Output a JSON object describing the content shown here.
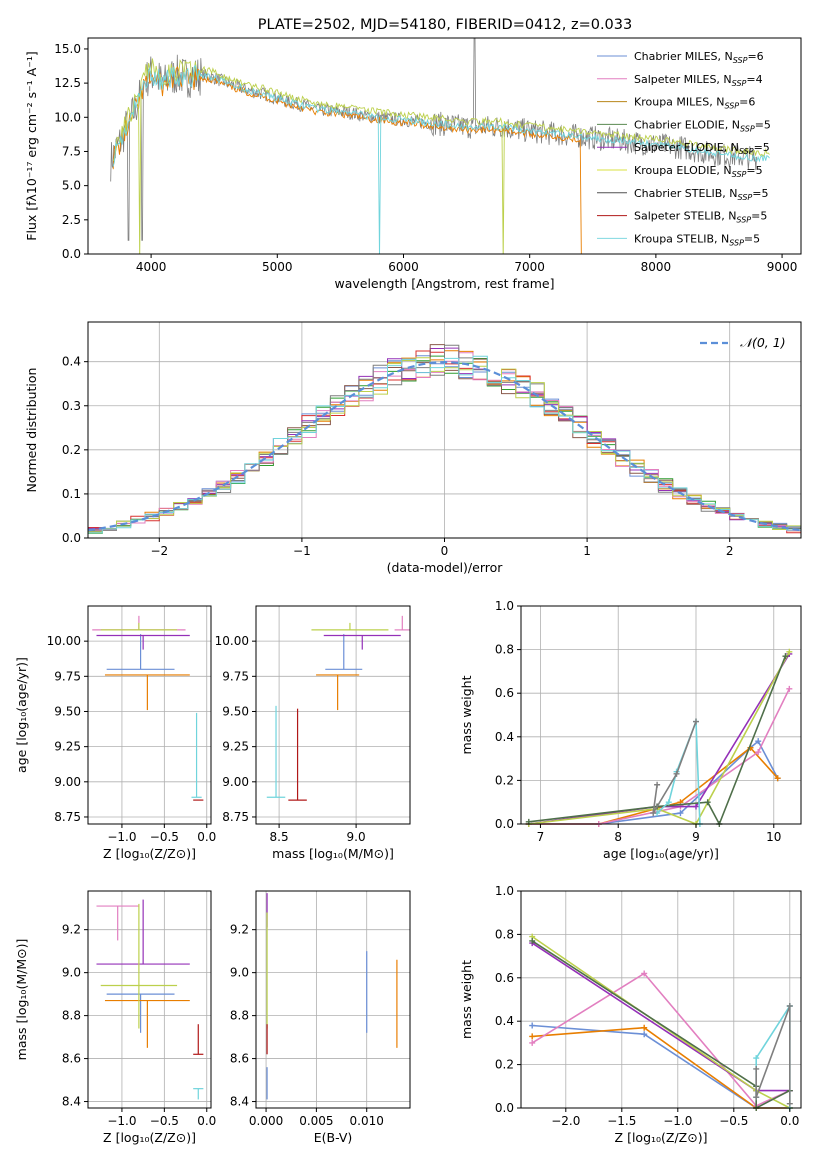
{
  "colors": [
    "#6b8fd6",
    "#e87e00",
    "#2e9d30",
    "#d8302e",
    "#9457c0",
    "#8b5a4c",
    "#e27fc0",
    "#7f7f7f",
    "#bcd04c",
    "#70d4dc"
  ],
  "chart_data": [
    {
      "type": "line",
      "title": "PLATE=2502, MJD=54180, FIBERID=0412, z=0.033",
      "xlabel": "wavelength [Angstrom, rest frame]",
      "ylabel": "Flux [fλ10⁻¹⁷ erg cm⁻² s⁻¹ A⁻¹]",
      "xlim": [
        3500,
        9150
      ],
      "ylim": [
        0,
        15.8
      ],
      "xticks": [
        4000,
        5000,
        6000,
        7000,
        8000,
        9000
      ],
      "yticks": [
        0.0,
        2.5,
        5.0,
        7.5,
        10.0,
        12.5,
        15.0
      ],
      "legend_position": "top-right",
      "legend": [
        {
          "label": "Chabrier MILES, N_SSP=6",
          "text": "Chabrier MILES, N",
          "sub": "SSP",
          "end": "=6",
          "color": "#6b8fd6"
        },
        {
          "label": "Salpeter MILES, N_SSP=4",
          "text": "Salpeter MILES, N",
          "sub": "SSP",
          "end": "=4",
          "color": "#e27fc0"
        },
        {
          "label": "Kroupa MILES, N_SSP=6",
          "text": "Kroupa MILES, N",
          "sub": "SSP",
          "end": "=6",
          "color": "#b8861a"
        },
        {
          "label": "Chabrier ELODIE, N_SSP=5",
          "text": "Chabrier ELODIE, N",
          "sub": "SSP",
          "end": "=5",
          "color": "#5a8a50"
        },
        {
          "label": "Salpeter ELODIE, N_SSP=5",
          "text": "Salpeter ELODIE, N",
          "sub": "SSP",
          "end": "=5",
          "color": "#9430b8"
        },
        {
          "label": "Kroupa ELODIE, N_SSP=5",
          "text": "Kroupa ELODIE, N",
          "sub": "SSP",
          "end": "=5",
          "color": "#d8e040"
        },
        {
          "label": "Chabrier STELIB, N_SSP=5",
          "text": "Chabrier STELIB, N",
          "sub": "SSP",
          "end": "=5",
          "color": "#505050"
        },
        {
          "label": "Salpeter STELIB, N_SSP=5",
          "text": "Salpeter STELIB, N",
          "sub": "SSP",
          "end": "=5",
          "color": "#b01818"
        },
        {
          "label": "Kroupa STELIB, N_SSP=5",
          "text": "Kroupa STELIB, N",
          "sub": "SSP",
          "end": "=5",
          "color": "#80d8e0"
        }
      ],
      "data_series": {
        "name": "data",
        "x": [
          3680,
          3720,
          3760,
          3800,
          3850,
          3900,
          3950,
          4000,
          4050,
          4100,
          4150,
          4200,
          4300,
          4400,
          4500,
          4600,
          4700,
          4800,
          4900,
          5000,
          5100,
          5200,
          5300,
          5400,
          5500,
          5600,
          5700,
          5800,
          5900,
          6000,
          6100,
          6200,
          6300,
          6400,
          6500,
          6600,
          6700,
          6800,
          6900,
          7000,
          7100,
          7200,
          7300,
          7400,
          7500,
          7600,
          7700,
          7800,
          7900,
          8000,
          8100,
          8200,
          8300,
          8400,
          8500,
          8600,
          8700,
          8800
        ],
        "y": [
          6.8,
          7.6,
          8.3,
          9.2,
          10.1,
          11.2,
          12.6,
          13.2,
          12.9,
          12.4,
          12.9,
          13.1,
          12.9,
          13.1,
          12.9,
          12.5,
          12.2,
          11.9,
          11.7,
          11.4,
          11.1,
          10.9,
          10.6,
          10.5,
          10.4,
          10.3,
          10.1,
          10.0,
          9.9,
          9.8,
          9.7,
          9.6,
          9.5,
          9.4,
          9.3,
          9.3,
          9.3,
          9.3,
          9.1,
          9.0,
          8.9,
          8.8,
          8.7,
          8.6,
          8.5,
          8.4,
          8.3,
          8.2,
          8.1,
          8.0,
          7.9,
          7.8,
          7.6,
          7.4,
          7.3,
          7.2,
          7.1,
          7.0
        ]
      }
    },
    {
      "type": "step",
      "xlabel": "(data-model)/error",
      "ylabel": "Normed distribution",
      "xlim": [
        -2.5,
        2.5
      ],
      "ylim": [
        0,
        0.49
      ],
      "xticks": [
        -2,
        -1,
        0,
        1,
        2
      ],
      "yticks": [
        0.0,
        0.1,
        0.2,
        0.3,
        0.4
      ],
      "legend_position": "top-right",
      "legend": [
        {
          "label": "𝒩(0, 1)",
          "color": "#5b8fd8"
        }
      ],
      "gaussian": {
        "mean": 0,
        "sigma": 1
      },
      "bin_width": 0.1
    },
    {
      "type": "errorbar",
      "xlabel": "Z [log₁₀(Z/Z⊙)]",
      "ylabel": "age  [log₁₀(age/yr)]",
      "xlim": [
        -1.4,
        0.05
      ],
      "ylim": [
        8.7,
        10.25
      ],
      "xticks": [
        -1.0,
        -0.5,
        0.0
      ],
      "yticks": [
        8.75,
        9.0,
        9.25,
        9.5,
        9.75,
        10.0
      ],
      "points": [
        {
          "x": -0.78,
          "y": 9.8,
          "xerr": 0.4,
          "yerr": [
            0.0,
            0.25
          ],
          "color": "#6b8fd6"
        },
        {
          "x": -0.7,
          "y": 9.76,
          "xerr": 0.5,
          "yerr": [
            0.25,
            0.0
          ],
          "color": "#e87e00"
        },
        {
          "x": -0.8,
          "y": 10.08,
          "xerr": 0.55,
          "yerr": [
            0.0,
            0.1
          ],
          "color": "#e27fc0"
        },
        {
          "x": -0.75,
          "y": 10.04,
          "xerr": 0.55,
          "yerr": [
            0.1,
            0.0
          ],
          "color": "#9430b8"
        },
        {
          "x": -0.8,
          "y": 10.08,
          "xerr": 0.45,
          "yerr": [
            0.0,
            0.05
          ],
          "color": "#bcd04c"
        },
        {
          "x": -0.12,
          "y": 8.89,
          "xerr": 0.06,
          "yerr": [
            0.0,
            0.6
          ],
          "color": "#70d4dc"
        },
        {
          "x": -0.1,
          "y": 8.87,
          "xerr": 0.06,
          "yerr": [
            0.0,
            0.0
          ],
          "color": "#b01818"
        }
      ]
    },
    {
      "type": "errorbar",
      "xlabel": "mass [log₁₀(M/M⊙)]",
      "ylabel": "",
      "xlim": [
        8.35,
        9.35
      ],
      "ylim": [
        8.7,
        10.25
      ],
      "xticks": [
        8.5,
        9.0
      ],
      "yticks": [
        8.75,
        9.0,
        9.25,
        9.5,
        9.75,
        10.0
      ],
      "points": [
        {
          "x": 8.92,
          "y": 9.8,
          "xerr": 0.12,
          "yerr": [
            0.0,
            0.25
          ],
          "color": "#6b8fd6"
        },
        {
          "x": 8.88,
          "y": 9.76,
          "xerr": 0.14,
          "yerr": [
            0.25,
            0.0
          ],
          "color": "#e87e00"
        },
        {
          "x": 9.3,
          "y": 10.08,
          "xerr": 0.05,
          "yerr": [
            0.0,
            0.1
          ],
          "color": "#e27fc0"
        },
        {
          "x": 9.04,
          "y": 10.04,
          "xerr": 0.25,
          "yerr": [
            0.1,
            0.0
          ],
          "color": "#9430b8"
        },
        {
          "x": 8.96,
          "y": 10.08,
          "xerr": 0.25,
          "yerr": [
            0.0,
            0.05
          ],
          "color": "#bcd04c"
        },
        {
          "x": 8.48,
          "y": 8.89,
          "xerr": 0.06,
          "yerr": [
            0.0,
            0.65
          ],
          "color": "#70d4dc"
        },
        {
          "x": 8.62,
          "y": 8.87,
          "xerr": 0.06,
          "yerr": [
            0.0,
            0.65
          ],
          "color": "#b01818"
        }
      ]
    },
    {
      "type": "line",
      "xlabel": "age  [log₁₀(age/yr)]",
      "ylabel": "mass weight",
      "xlim": [
        6.75,
        10.35
      ],
      "ylim": [
        0,
        1.0
      ],
      "xticks": [
        7,
        8,
        9,
        10
      ],
      "yticks": [
        0.0,
        0.2,
        0.4,
        0.6,
        0.8,
        1.0
      ],
      "series": [
        {
          "color": "#6b8fd6",
          "x": [
            6.85,
            7.75,
            8.8,
            9.7,
            9.8,
            10.05
          ],
          "y": [
            0.0,
            0.0,
            0.05,
            0.35,
            0.38,
            0.21
          ]
        },
        {
          "color": "#e87e00",
          "x": [
            6.85,
            7.75,
            8.8,
            9.7,
            10.05
          ],
          "y": [
            0.0,
            0.0,
            0.1,
            0.35,
            0.21
          ]
        },
        {
          "color": "#e27fc0",
          "x": [
            6.85,
            7.75,
            8.8,
            9.8,
            10.2
          ],
          "y": [
            0.0,
            0.0,
            0.08,
            0.33,
            0.62
          ]
        },
        {
          "color": "#9430b8",
          "x": [
            6.85,
            8.5,
            9.0,
            10.2
          ],
          "y": [
            0.0,
            0.08,
            0.08,
            0.78
          ]
        },
        {
          "color": "#bcd04c",
          "x": [
            6.85,
            8.5,
            9.0,
            10.2
          ],
          "y": [
            0.0,
            0.07,
            0.0,
            0.79
          ]
        },
        {
          "color": "#4f6f4a",
          "x": [
            6.85,
            8.5,
            9.15,
            9.3,
            10.15
          ],
          "y": [
            0.01,
            0.08,
            0.1,
            0.0,
            0.77
          ]
        },
        {
          "color": "#70d4dc",
          "x": [
            8.5,
            8.65,
            8.75,
            9.0,
            9.05
          ],
          "y": [
            0.05,
            0.1,
            0.24,
            0.47,
            0.0
          ]
        },
        {
          "color": "#7f7f7f",
          "x": [
            8.5,
            8.45,
            8.75,
            9.0
          ],
          "y": [
            0.18,
            0.05,
            0.23,
            0.47
          ]
        }
      ]
    },
    {
      "type": "errorbar",
      "xlabel": "Z [log₁₀(Z/Z⊙)]",
      "ylabel": "mass [log₁₀(M/M⊙)]",
      "xlim": [
        -1.4,
        0.05
      ],
      "ylim": [
        8.37,
        9.38
      ],
      "xticks": [
        -1.0,
        -0.5,
        0.0
      ],
      "yticks": [
        8.4,
        8.6,
        8.8,
        9.0,
        9.2
      ],
      "points": [
        {
          "x": -0.78,
          "y": 8.9,
          "xerr": 0.4,
          "yerr": [
            0.18,
            0.0
          ],
          "color": "#6b8fd6"
        },
        {
          "x": -0.7,
          "y": 8.87,
          "xerr": 0.5,
          "yerr": [
            0.22,
            0.0
          ],
          "color": "#e87e00"
        },
        {
          "x": -1.05,
          "y": 9.31,
          "xerr": 0.25,
          "yerr": [
            0.16,
            0.0
          ],
          "color": "#e27fc0"
        },
        {
          "x": -0.75,
          "y": 9.04,
          "xerr": 0.55,
          "yerr": [
            0.0,
            0.3
          ],
          "color": "#9430b8"
        },
        {
          "x": -0.8,
          "y": 8.94,
          "xerr": 0.45,
          "yerr": [
            0.2,
            0.38
          ],
          "color": "#bcd04c"
        },
        {
          "x": -0.1,
          "y": 8.46,
          "xerr": 0.06,
          "yerr": [
            0.05,
            0.0
          ],
          "color": "#70d4dc"
        },
        {
          "x": -0.1,
          "y": 8.62,
          "xerr": 0.06,
          "yerr": [
            0.0,
            0.14
          ],
          "color": "#b01818"
        }
      ]
    },
    {
      "type": "errorbar",
      "xlabel": "E(B-V)",
      "ylabel": "",
      "xlim": [
        -0.001,
        0.0143
      ],
      "ylim": [
        8.37,
        9.38
      ],
      "xticks": [
        0.0,
        0.005,
        0.01
      ],
      "xticklabels": [
        "0.000",
        "0.005",
        "0.010"
      ],
      "yticks": [
        8.4,
        8.6,
        8.8,
        9.0,
        9.2
      ],
      "points": [
        {
          "x": 0.01,
          "y": 8.9,
          "yerr": [
            0.18,
            0.2
          ],
          "color": "#6b8fd6"
        },
        {
          "x": 0.013,
          "y": 8.87,
          "yerr": [
            0.22,
            0.19
          ],
          "color": "#e87e00"
        },
        {
          "x": 0.0001,
          "y": 9.31,
          "yerr": [
            0.1,
            0.06
          ],
          "color": "#9430b8"
        },
        {
          "x": 0.0001,
          "y": 8.94,
          "yerr": [
            0.2,
            0.34
          ],
          "color": "#bcd04c"
        },
        {
          "x": 0.0001,
          "y": 8.46,
          "yerr": [
            0.05,
            0.1
          ],
          "color": "#6b8fd6"
        },
        {
          "x": 0.0001,
          "y": 8.62,
          "yerr": [
            0.0,
            0.14
          ],
          "color": "#b01818"
        }
      ]
    },
    {
      "type": "line",
      "xlabel": "Z [log₁₀(Z/Z⊙)]",
      "ylabel": "mass weight",
      "xlim": [
        -2.4,
        0.1
      ],
      "ylim": [
        0,
        1.0
      ],
      "xticks": [
        -2.0,
        -1.5,
        -1.0,
        -0.5,
        0.0
      ],
      "yticks": [
        0.0,
        0.2,
        0.4,
        0.6,
        0.8,
        1.0
      ],
      "series": [
        {
          "color": "#6b8fd6",
          "x": [
            -2.3,
            -1.3,
            -0.3,
            0.0
          ],
          "y": [
            0.38,
            0.34,
            0.0,
            0.0
          ]
        },
        {
          "color": "#e87e00",
          "x": [
            -2.3,
            -1.3,
            -0.3,
            0.0
          ],
          "y": [
            0.33,
            0.37,
            0.0,
            0.0
          ]
        },
        {
          "color": "#e27fc0",
          "x": [
            -2.3,
            -1.3,
            -0.3,
            0.0
          ],
          "y": [
            0.3,
            0.62,
            0.01,
            0.08
          ]
        },
        {
          "color": "#9430b8",
          "x": [
            -2.3,
            -0.3,
            0.0
          ],
          "y": [
            0.76,
            0.08,
            0.08
          ]
        },
        {
          "color": "#bcd04c",
          "x": [
            -2.3,
            -0.3,
            0.0
          ],
          "y": [
            0.79,
            0.08,
            0.0
          ]
        },
        {
          "color": "#4f6f4a",
          "x": [
            -2.3,
            -0.3,
            -0.3,
            0.0
          ],
          "y": [
            0.77,
            0.1,
            0.0,
            0.08
          ]
        },
        {
          "color": "#70d4dc",
          "x": [
            -0.3,
            -0.3,
            0.0,
            0.0
          ],
          "y": [
            0.05,
            0.23,
            0.47,
            0.0
          ]
        },
        {
          "color": "#7f7f7f",
          "x": [
            -0.3,
            -0.3,
            0.0,
            0.0
          ],
          "y": [
            0.18,
            0.05,
            0.47,
            0.02
          ]
        }
      ]
    }
  ]
}
